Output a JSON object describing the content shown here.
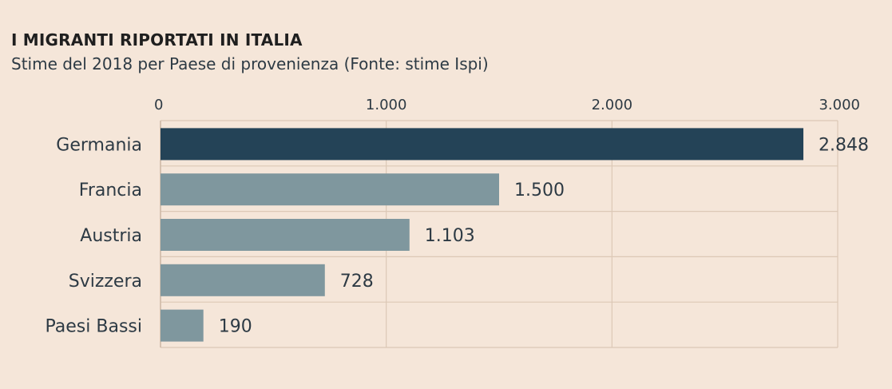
{
  "chart_data": {
    "type": "bar",
    "orientation": "horizontal",
    "title": "I MIGRANTI RIPORTATI IN ITALIA",
    "subtitle": "Stime del 2018 per Paese di provenienza (Fonte: stime Ispi)",
    "categories": [
      "Germania",
      "Francia",
      "Austria",
      "Svizzera",
      "Paesi Bassi"
    ],
    "values": [
      2848,
      1500,
      1103,
      728,
      190
    ],
    "value_labels": [
      "2.848",
      "1.500",
      "1.103",
      "728",
      "190"
    ],
    "xlim": [
      0,
      3000
    ],
    "xticks": [
      0,
      1000,
      2000,
      3000
    ],
    "xtick_labels": [
      "0",
      "1.000",
      "2.000",
      "3.000"
    ],
    "xlabel": "",
    "ylabel": "",
    "grid": true,
    "highlight_color": "#244357",
    "bar_color": "#7f979e"
  }
}
